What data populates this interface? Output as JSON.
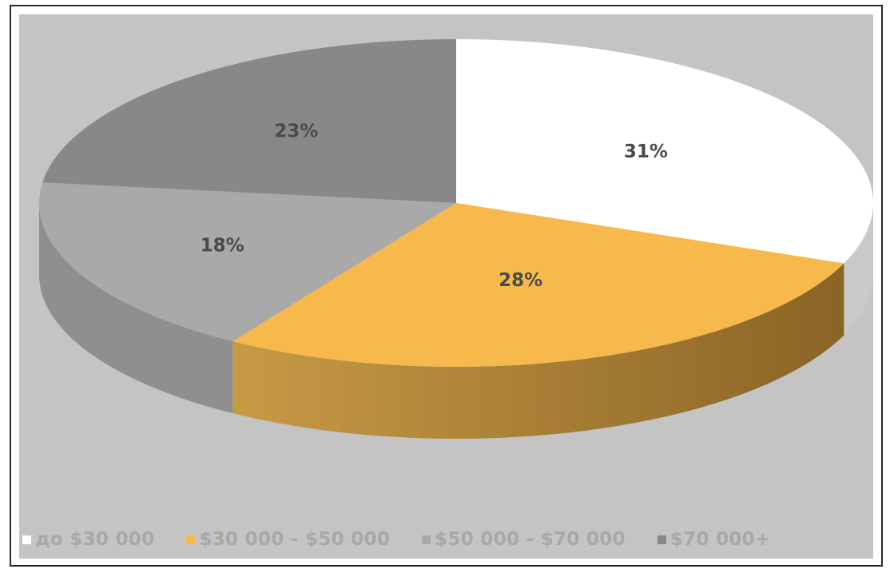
{
  "chart_data": {
    "type": "pie",
    "categories": [
      "до $30 000",
      "$30 000 - $50 000",
      "$50 000 - $70 000",
      "$70 000+"
    ],
    "values": [
      31,
      28,
      18,
      23
    ],
    "data_labels": [
      "31%",
      "28%",
      "18%",
      "23%"
    ],
    "colors": [
      "#ffffff",
      "#f7b94c",
      "#a9a9a9",
      "#888888"
    ],
    "side_colors": [
      "#c9c9c9",
      "#8a6426",
      "#8f8f8f",
      "#6f6f6f"
    ],
    "legend_position": "bottom",
    "style": "3d",
    "start_direction": "top"
  }
}
